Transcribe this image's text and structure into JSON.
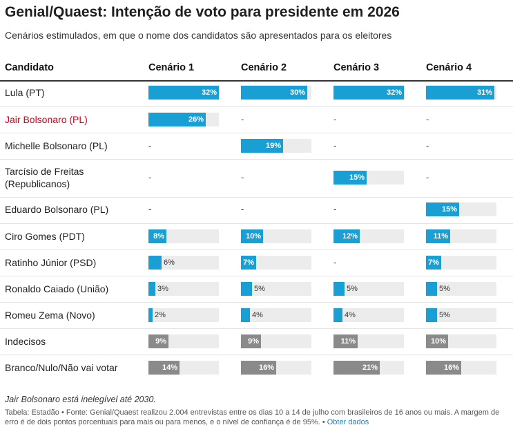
{
  "title": "Genial/Quaest: Intenção de voto para presidente em 2026",
  "subtitle": "Cenários estimulados, em que o nome dos candidatos são apresentados para os eleitores",
  "header": {
    "candidate": "Candidato",
    "scenarios": [
      "Cenário 1",
      "Cenário 2",
      "Cenário 3",
      "Cenário 4"
    ]
  },
  "colors": {
    "candidate_bar": "#1a9fd4",
    "other_bar": "#8a8a8a",
    "track": "#ececec",
    "highlight_text": "#d0021b"
  },
  "chart_data": {
    "type": "table",
    "columns": [
      "Cenário 1",
      "Cenário 2",
      "Cenário 3",
      "Cenário 4"
    ],
    "max_value": 32,
    "rows": [
      {
        "name": "Lula (PT)",
        "kind": "candidate",
        "values": [
          32,
          30,
          32,
          31
        ]
      },
      {
        "name": "Jair Bolsonaro (PL)",
        "kind": "candidate",
        "highlight": true,
        "values": [
          26,
          null,
          null,
          null
        ]
      },
      {
        "name": "Michelle Bolsonaro (PL)",
        "kind": "candidate",
        "values": [
          null,
          19,
          null,
          null
        ]
      },
      {
        "name": "Tarcísio de Freitas (Republicanos)",
        "kind": "candidate",
        "values": [
          null,
          null,
          15,
          null
        ]
      },
      {
        "name": "Eduardo Bolsonaro (PL)",
        "kind": "candidate",
        "values": [
          null,
          null,
          null,
          15
        ]
      },
      {
        "name": "Ciro Gomes (PDT)",
        "kind": "candidate",
        "values": [
          8,
          10,
          12,
          11
        ]
      },
      {
        "name": "Ratinho Júnior (PSD)",
        "kind": "candidate",
        "values": [
          6,
          7,
          null,
          7
        ]
      },
      {
        "name": "Ronaldo Caiado (União)",
        "kind": "candidate",
        "values": [
          3,
          5,
          5,
          5
        ]
      },
      {
        "name": "Romeu Zema (Novo)",
        "kind": "candidate",
        "values": [
          2,
          4,
          4,
          5
        ]
      },
      {
        "name": "Indecisos",
        "kind": "other",
        "values": [
          9,
          9,
          11,
          10
        ]
      },
      {
        "name": "Branco/Nulo/Não vai votar",
        "kind": "other",
        "values": [
          14,
          16,
          21,
          16
        ]
      }
    ]
  },
  "note": "Jair Bolsonaro está inelegível até 2030.",
  "source": "Tabela: Estadão • Fonte: Genial/Quaest realizou 2.004 entrevistas entre os dias 10 a 14 de julho com brasileiros de 16 anos ou mais. A margem de erro é de dois pontos porcentuais para mais ou para menos, e o nível de confiança é de 95%. • ",
  "get_data_link": "Obter dados"
}
